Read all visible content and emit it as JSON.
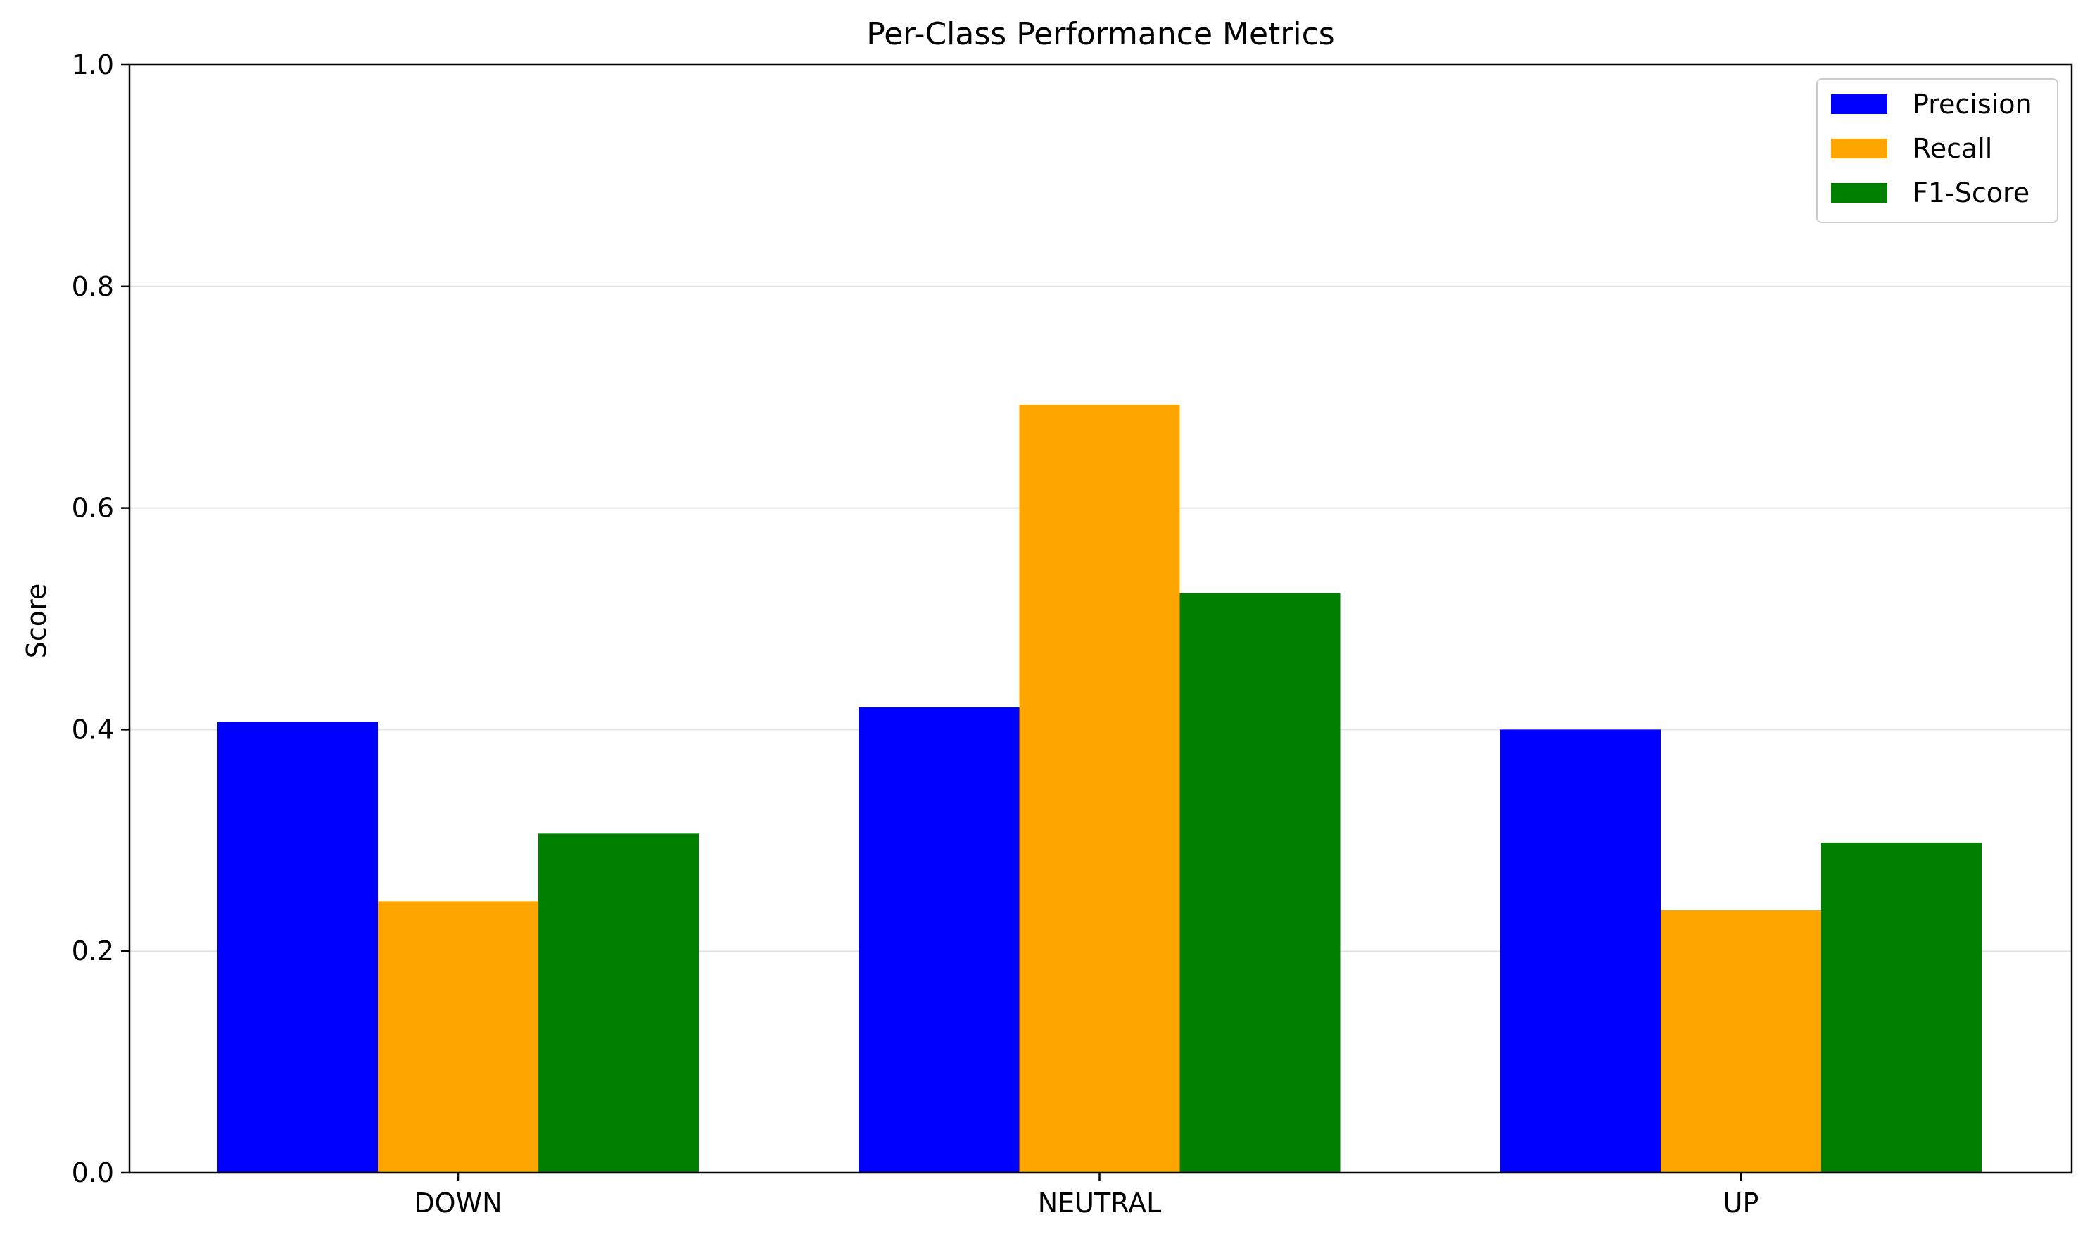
{
  "chart_data": {
    "type": "bar",
    "title": "Per-Class Performance Metrics",
    "xlabel": "",
    "ylabel": "Score",
    "categories": [
      "DOWN",
      "NEUTRAL",
      "UP"
    ],
    "series": [
      {
        "name": "Precision",
        "color": "#0000ff",
        "values": [
          0.407,
          0.42,
          0.4
        ]
      },
      {
        "name": "Recall",
        "color": "#ffa500",
        "values": [
          0.245,
          0.693,
          0.237
        ]
      },
      {
        "name": "F1-Score",
        "color": "#008000",
        "values": [
          0.306,
          0.523,
          0.298
        ]
      }
    ],
    "ylim": [
      0,
      1.0
    ],
    "yticks": [
      "0.0",
      "0.2",
      "0.4",
      "0.6",
      "0.8",
      "1.0"
    ],
    "grid": "horizontal",
    "legend_position": "top-right"
  }
}
